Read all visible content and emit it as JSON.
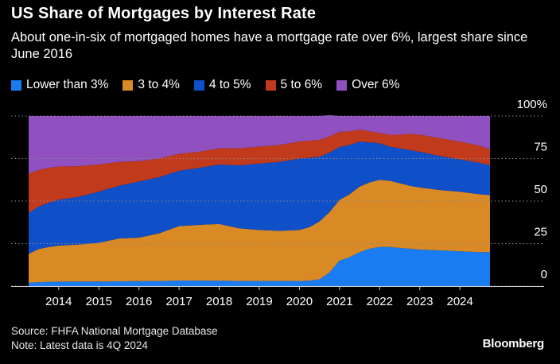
{
  "chart_data": {
    "type": "area",
    "stacked": true,
    "title": "US Share of Mortgages by Interest Rate",
    "subtitle": "About one-in-six of mortgaged homes have a mortgage rate over 6%, largest share since June 2016",
    "x_tick_labels": [
      "2014",
      "2015",
      "2016",
      "2017",
      "2018",
      "2019",
      "2020",
      "2021",
      "2022",
      "2023",
      "2024"
    ],
    "y_tick_labels": [
      "0",
      "25",
      "50",
      "75",
      "100%"
    ],
    "ylim": [
      0,
      100
    ],
    "xlim": [
      2013.25,
      2024.75
    ],
    "x": [
      2013.25,
      2013.5,
      2013.75,
      2014,
      2014.5,
      2015,
      2015.5,
      2016,
      2016.5,
      2017,
      2017.5,
      2018,
      2018.5,
      2019,
      2019.5,
      2020,
      2020.25,
      2020.5,
      2020.75,
      2021,
      2021.25,
      2021.5,
      2021.75,
      2022,
      2022.25,
      2022.5,
      2022.75,
      2023,
      2023.5,
      2024,
      2024.5,
      2024.75
    ],
    "legend_position": "top",
    "grid": true,
    "series": [
      {
        "name": "Lower than 3%",
        "color": "#1a7cf2",
        "values": [
          2,
          2.3,
          2.5,
          2.6,
          2.7,
          2.7,
          2.8,
          2.9,
          3,
          3.3,
          3.2,
          3.2,
          3,
          3,
          3,
          3,
          3.2,
          4,
          8,
          15,
          17,
          20,
          22,
          23,
          23,
          22.5,
          22,
          21.5,
          21,
          20.5,
          20,
          20
        ]
      },
      {
        "name": "3 to 4%",
        "color": "#d98a24",
        "values": [
          17,
          19.5,
          20.5,
          21.2,
          21.8,
          22.8,
          25.2,
          25.6,
          28,
          32,
          32.8,
          33.3,
          31,
          30,
          29.5,
          30,
          31.5,
          34,
          35.5,
          35.7,
          37,
          38.5,
          39,
          39.5,
          39,
          38,
          37,
          36.5,
          35.5,
          35,
          34,
          33.5
        ]
      },
      {
        "name": "4 to 5%",
        "color": "#0f4fc7",
        "values": [
          24,
          25,
          26,
          27,
          28,
          30,
          31,
          33,
          33,
          32.5,
          33.5,
          35,
          37,
          39,
          40.5,
          42,
          40.8,
          38,
          35,
          31,
          29,
          26.5,
          23.5,
          21.5,
          20,
          20.5,
          21,
          21,
          20,
          19,
          18.5,
          17.5
        ]
      },
      {
        "name": "5 to 6%",
        "color": "#c13a1b",
        "values": [
          23,
          21.5,
          20.5,
          19.5,
          18,
          16,
          14,
          12,
          11,
          10,
          9.5,
          9.5,
          10,
          10,
          10,
          10,
          10,
          10,
          9.5,
          9,
          8,
          7,
          6.5,
          6,
          7,
          8,
          9.5,
          10,
          10.5,
          10.5,
          10,
          9.5
        ]
      },
      {
        "name": "Over 6%",
        "color": "#9150c0",
        "values": [
          34,
          31.7,
          30.5,
          29.7,
          29.5,
          28.5,
          27,
          26.5,
          25,
          22.2,
          21,
          19,
          19,
          18,
          17,
          15,
          14.5,
          14,
          12.5,
          9.3,
          9,
          8,
          9,
          10,
          11,
          11,
          10.5,
          11,
          13,
          15,
          17.5,
          19.5
        ]
      }
    ]
  },
  "footer": {
    "source": "Source: FHFA National Mortgage Database",
    "note": "Note: Latest data is 4Q 2024"
  },
  "brand": "Bloomberg"
}
